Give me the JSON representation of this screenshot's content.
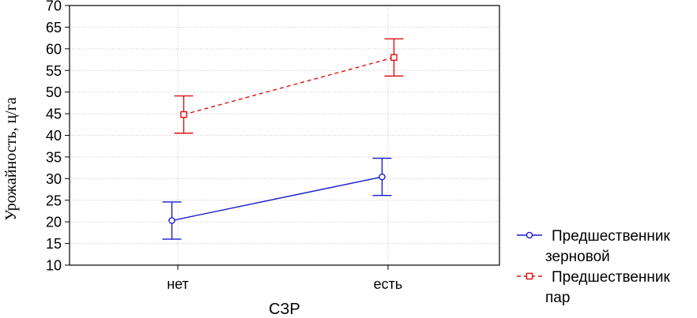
{
  "chart_data": {
    "type": "line",
    "title": "",
    "xlabel": "СЗР",
    "ylabel": "Урожайность, ц/га",
    "categories": [
      "нет",
      "есть"
    ],
    "ylim": [
      10,
      70
    ],
    "yticks": [
      10,
      15,
      20,
      25,
      30,
      35,
      40,
      45,
      50,
      55,
      60,
      65,
      70
    ],
    "grid": true,
    "legend_position": "bottom-right outside",
    "series": [
      {
        "name_lines": [
          "Предшественник",
          "зерновой"
        ],
        "color": "#1a1acc",
        "marker": "circle",
        "line_style": "solid",
        "values": [
          20.3,
          30.4
        ],
        "error_low": [
          16.0,
          26.1
        ],
        "error_high": [
          24.6,
          34.7
        ]
      },
      {
        "name_lines": [
          "Предшественник",
          "пар"
        ],
        "color": "#dd1111",
        "marker": "square",
        "line_style": "dashed",
        "values": [
          44.8,
          58.0
        ],
        "error_low": [
          40.5,
          53.7
        ],
        "error_high": [
          49.1,
          62.3
        ]
      }
    ]
  }
}
